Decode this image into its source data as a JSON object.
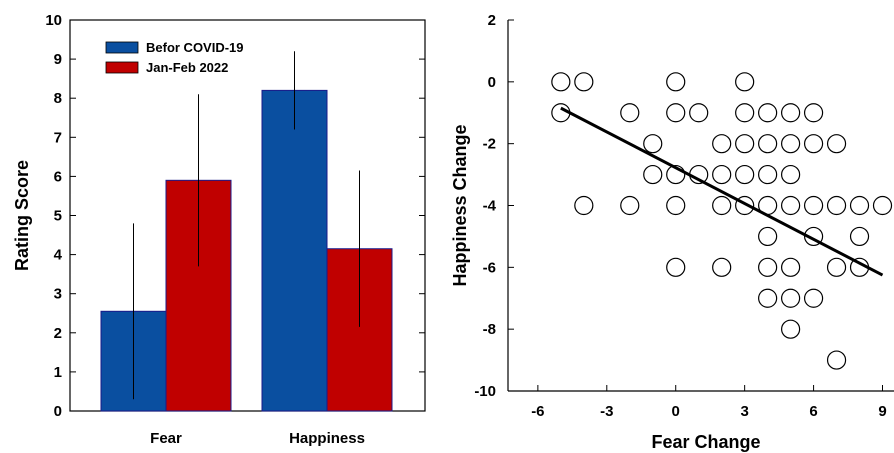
{
  "chart_data": [
    {
      "type": "bar",
      "title": "",
      "xlabel": "",
      "ylabel": "Rating Score",
      "ylim": [
        0,
        10
      ],
      "yticks": [
        0,
        1,
        2,
        3,
        4,
        5,
        6,
        7,
        8,
        9,
        10
      ],
      "categories": [
        "Fear",
        "Happiness"
      ],
      "series": [
        {
          "name": "Befor COVID-19",
          "color": "#0a4fa0",
          "values": [
            2.55,
            8.2
          ],
          "error": [
            2.25,
            1.0
          ]
        },
        {
          "name": "Jan-Feb 2022",
          "color": "#c00000",
          "values": [
            5.9,
            4.15
          ],
          "error": [
            2.2,
            2.0
          ]
        }
      ],
      "legend": "top-left",
      "grid": false
    },
    {
      "type": "scatter",
      "title": "",
      "xlabel": "Fear Change",
      "ylabel": "Happiness Change",
      "xlim": [
        -7.3,
        9.5
      ],
      "ylim": [
        -10,
        2
      ],
      "xticks": [
        -6,
        -3,
        0,
        3,
        6,
        9
      ],
      "yticks": [
        -10,
        -8,
        -6,
        -4,
        -2,
        0,
        2
      ],
      "points": [
        [
          -5,
          0
        ],
        [
          -4,
          0
        ],
        [
          0,
          0
        ],
        [
          3,
          0
        ],
        [
          -5,
          -1
        ],
        [
          -2,
          -1
        ],
        [
          0,
          -1
        ],
        [
          1,
          -1
        ],
        [
          3,
          -1
        ],
        [
          4,
          -1
        ],
        [
          5,
          -1
        ],
        [
          6,
          -1
        ],
        [
          -1,
          -2
        ],
        [
          2,
          -2
        ],
        [
          3,
          -2
        ],
        [
          4,
          -2
        ],
        [
          5,
          -2
        ],
        [
          6,
          -2
        ],
        [
          7,
          -2
        ],
        [
          -1,
          -3
        ],
        [
          0,
          -3
        ],
        [
          1,
          -3
        ],
        [
          2,
          -3
        ],
        [
          3,
          -3
        ],
        [
          4,
          -3
        ],
        [
          5,
          -3
        ],
        [
          -4,
          -4
        ],
        [
          -2,
          -4
        ],
        [
          0,
          -4
        ],
        [
          2,
          -4
        ],
        [
          3,
          -4
        ],
        [
          4,
          -4
        ],
        [
          5,
          -4
        ],
        [
          6,
          -4
        ],
        [
          7,
          -4
        ],
        [
          8,
          -4
        ],
        [
          9,
          -4
        ],
        [
          4,
          -5
        ],
        [
          6,
          -5
        ],
        [
          8,
          -5
        ],
        [
          0,
          -6
        ],
        [
          2,
          -6
        ],
        [
          4,
          -6
        ],
        [
          5,
          -6
        ],
        [
          7,
          -6
        ],
        [
          8,
          -6
        ],
        [
          4,
          -7
        ],
        [
          5,
          -7
        ],
        [
          6,
          -7
        ],
        [
          5,
          -8
        ],
        [
          7,
          -9
        ]
      ],
      "trendline": {
        "x": [
          -5,
          9
        ],
        "y": [
          -0.85,
          -6.25
        ]
      },
      "grid": false
    }
  ]
}
